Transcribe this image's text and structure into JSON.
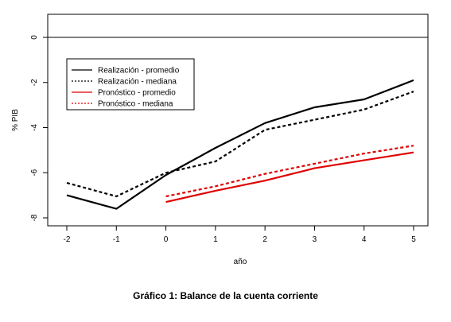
{
  "caption": "Gráfico 1: Balance de la cuenta corriente",
  "chart_data": {
    "type": "line",
    "xlabel": "año",
    "ylabel": "% PIB",
    "xlim": [
      -2,
      5
    ],
    "ylim": [
      -8,
      0
    ],
    "x_ticks": [
      -2,
      -1,
      0,
      1,
      2,
      3,
      4,
      5
    ],
    "y_ticks": [
      0,
      -2,
      -4,
      -6,
      -8
    ],
    "reference_line": 0,
    "grid": false,
    "legend_position": "top-left",
    "series": [
      {
        "name": "Realización - promedio",
        "color": "#000000",
        "dash": "solid",
        "x": [
          -2,
          -1,
          0,
          1,
          2,
          3,
          4,
          5
        ],
        "values": [
          -7.0,
          -7.6,
          -6.1,
          -4.9,
          -3.8,
          -3.1,
          -2.75,
          -1.9
        ]
      },
      {
        "name": "Realización - mediana",
        "color": "#000000",
        "dash": "dotted",
        "x": [
          -2,
          -1,
          0,
          1,
          2,
          3,
          4,
          5
        ],
        "values": [
          -6.45,
          -7.05,
          -6.0,
          -5.5,
          -4.1,
          -3.65,
          -3.2,
          -2.4
        ]
      },
      {
        "name": "Pronóstico - promedio",
        "color": "#e00000",
        "dash": "solid",
        "x": [
          0,
          1,
          2,
          3,
          4,
          5
        ],
        "values": [
          -7.3,
          -6.8,
          -6.35,
          -5.8,
          -5.45,
          -5.1
        ]
      },
      {
        "name": "Pronóstico - mediana",
        "color": "#e00000",
        "dash": "dotted",
        "x": [
          0,
          1,
          2,
          3,
          4,
          5
        ],
        "values": [
          -7.05,
          -6.6,
          -6.05,
          -5.6,
          -5.15,
          -4.8
        ]
      }
    ]
  }
}
